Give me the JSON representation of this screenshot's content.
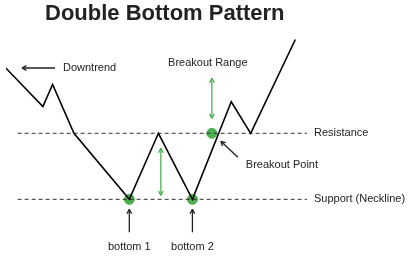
{
  "chart_data": {
    "type": "line",
    "title": "Double Bottom Pattern",
    "x": [
      0,
      38,
      48,
      70,
      127,
      157,
      192,
      232,
      252,
      298
    ],
    "values": [
      215,
      175,
      198,
      147,
      78,
      147,
      78,
      180,
      147,
      245
    ],
    "color": "#000000",
    "xlim": [
      0,
      413
    ],
    "ylim": [
      0,
      280
    ],
    "tick_labels": false,
    "grid": false,
    "levels": [
      {
        "label": "Resistance",
        "value": 147,
        "x": [
          12,
          310
        ],
        "line_style": "dashed"
      },
      {
        "label": "Support (Neckline)",
        "value": 78,
        "x": [
          12,
          310
        ],
        "line_style": "dashed"
      }
    ],
    "markers": {
      "color": "#4caf50",
      "marker": "circle",
      "points": [
        {
          "x": 127,
          "y": 78,
          "label": "bottom 1"
        },
        {
          "x": 192,
          "y": 78,
          "label": "bottom 2"
        },
        {
          "x": 212,
          "y": 147,
          "label": "Breakout Point"
        }
      ]
    },
    "annotations": [
      {
        "text": "Downtrend"
      },
      {
        "text": "Breakout Range"
      }
    ]
  }
}
